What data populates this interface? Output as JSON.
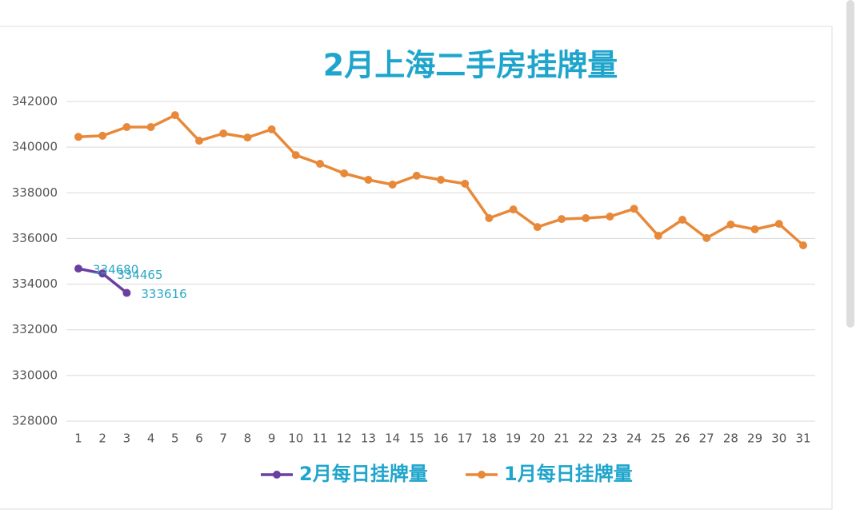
{
  "chart_data": {
    "type": "line",
    "title": "2月上海二手房挂牌量",
    "categories": [
      "1",
      "2",
      "3",
      "4",
      "5",
      "6",
      "7",
      "8",
      "9",
      "10",
      "11",
      "12",
      "13",
      "14",
      "15",
      "16",
      "17",
      "18",
      "19",
      "20",
      "21",
      "22",
      "23",
      "24",
      "25",
      "26",
      "27",
      "28",
      "29",
      "30",
      "31"
    ],
    "series": [
      {
        "name": "2月每日挂牌量",
        "color": "#6b3fa0",
        "values": [
          334680,
          334465,
          333616,
          null,
          null,
          null,
          null,
          null,
          null,
          null,
          null,
          null,
          null,
          null,
          null,
          null,
          null,
          null,
          null,
          null,
          null,
          null,
          null,
          null,
          null,
          null,
          null,
          null,
          null,
          null,
          null
        ],
        "value_labels": [
          "334680",
          "334465",
          "333616"
        ]
      },
      {
        "name": "1月每日挂牌量",
        "color": "#e8893a",
        "values": [
          340450,
          340500,
          340880,
          340880,
          341400,
          340280,
          340600,
          340420,
          340780,
          339650,
          339270,
          338850,
          338570,
          338360,
          338750,
          338570,
          338400,
          336890,
          337270,
          336500,
          336850,
          336890,
          336960,
          337300,
          336120,
          336820,
          336020,
          336610,
          336400,
          336640,
          335700
        ]
      }
    ],
    "ylim": [
      328000,
      342000
    ],
    "yticks": [
      328000,
      330000,
      332000,
      334000,
      336000,
      338000,
      340000,
      342000
    ],
    "grid": true,
    "legend": "bottom"
  }
}
